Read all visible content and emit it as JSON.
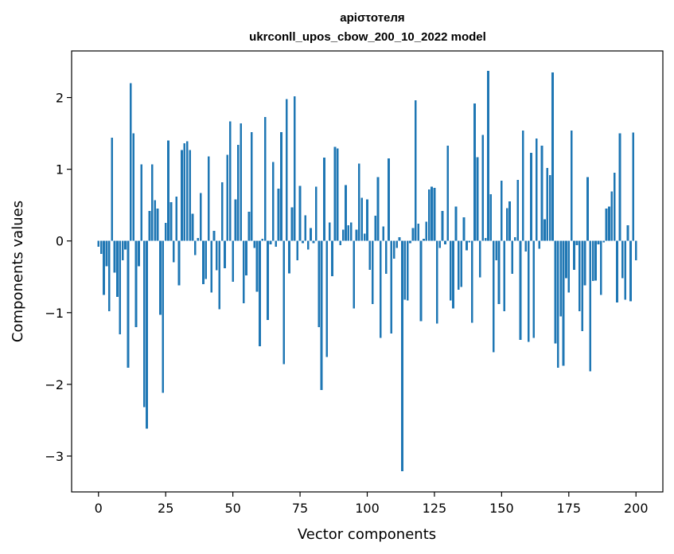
{
  "chart_data": {
    "type": "bar",
    "title": "аріστотеля",
    "subtitle": "ukrconll_upos_cbow_200_10_2022 model",
    "xlabel": "Vector components",
    "ylabel": "Components values",
    "xlim": [
      -10,
      210
    ],
    "ylim": [
      -3.5,
      2.65
    ],
    "xticks": [
      0,
      25,
      50,
      75,
      100,
      125,
      150,
      175,
      200
    ],
    "yticks": [
      -3,
      -2,
      -1,
      0,
      1,
      2
    ],
    "ytick_labels": [
      "−3",
      "−2",
      "−1",
      "0",
      "1",
      "2"
    ],
    "bar_color": "#1f77b4",
    "grid": false,
    "series": [
      {
        "values": [
          -0.08,
          -0.18,
          -0.75,
          -0.35,
          -0.98,
          1.44,
          -0.44,
          -0.78,
          -1.3,
          -0.27,
          -0.12,
          -1.77,
          2.2,
          1.5,
          -1.2,
          -0.35,
          1.07,
          -2.32,
          -2.62,
          0.42,
          1.07,
          0.57,
          0.45,
          -1.03,
          -2.12,
          0.25,
          1.4,
          0.54,
          -0.3,
          0.62,
          -0.62,
          1.27,
          1.36,
          1.39,
          1.27,
          0.38,
          -0.2,
          0.04,
          0.67,
          -0.6,
          -0.53,
          1.18,
          -0.72,
          0.14,
          -0.41,
          -0.95,
          0.82,
          -0.38,
          1.2,
          1.67,
          -0.57,
          0.58,
          1.34,
          1.64,
          -0.87,
          -0.48,
          0.41,
          1.52,
          -0.1,
          -0.71,
          -1.47,
          0.03,
          1.73,
          -1.1,
          -0.05,
          1.1,
          -0.08,
          0.73,
          1.52,
          -1.72,
          1.98,
          -0.45,
          0.47,
          2.02,
          -0.27,
          0.77,
          -0.03,
          0.36,
          -0.12,
          0.18,
          -0.03,
          0.76,
          -1.2,
          -2.08,
          1.16,
          -1.62,
          0.26,
          -0.49,
          1.31,
          1.29,
          -0.06,
          0.16,
          0.78,
          0.22,
          0.26,
          -0.94,
          0.16,
          1.08,
          0.6,
          0.1,
          0.58,
          -0.4,
          -0.88,
          0.35,
          0.89,
          -1.35,
          0.2,
          -0.46,
          1.15,
          -1.29,
          -0.25,
          -0.1,
          0.05,
          -3.21,
          -0.82,
          -0.83,
          -0.03,
          0.18,
          1.96,
          0.24,
          -1.12,
          0.03,
          0.27,
          0.72,
          0.76,
          0.74,
          -1.15,
          -0.1,
          0.42,
          -0.05,
          1.33,
          -0.83,
          -0.94,
          0.48,
          -0.68,
          -0.64,
          0.33,
          -0.13,
          -0.02,
          -1.14,
          1.92,
          1.17,
          -0.51,
          1.48,
          0.04,
          2.37,
          0.65,
          -1.55,
          -0.27,
          -0.88,
          0.84,
          -0.98,
          0.46,
          0.55,
          -0.46,
          0.05,
          0.85,
          -1.38,
          1.54,
          -0.15,
          -1.41,
          1.23,
          -1.35,
          1.43,
          -0.11,
          1.33,
          0.3,
          1.02,
          0.92,
          2.35,
          -1.43,
          -1.77,
          -1.05,
          -1.74,
          -0.52,
          -0.72,
          1.54,
          -0.4,
          -0.06,
          -0.98,
          -1.26,
          -0.62,
          0.89,
          -1.82,
          -0.56,
          -0.55,
          -0.05,
          -0.75,
          -0.02,
          0.45,
          0.48,
          0.69,
          0.95,
          -0.86,
          1.5,
          -0.52,
          -0.82,
          0.22,
          -0.84,
          1.51,
          -0.27
        ]
      }
    ]
  }
}
